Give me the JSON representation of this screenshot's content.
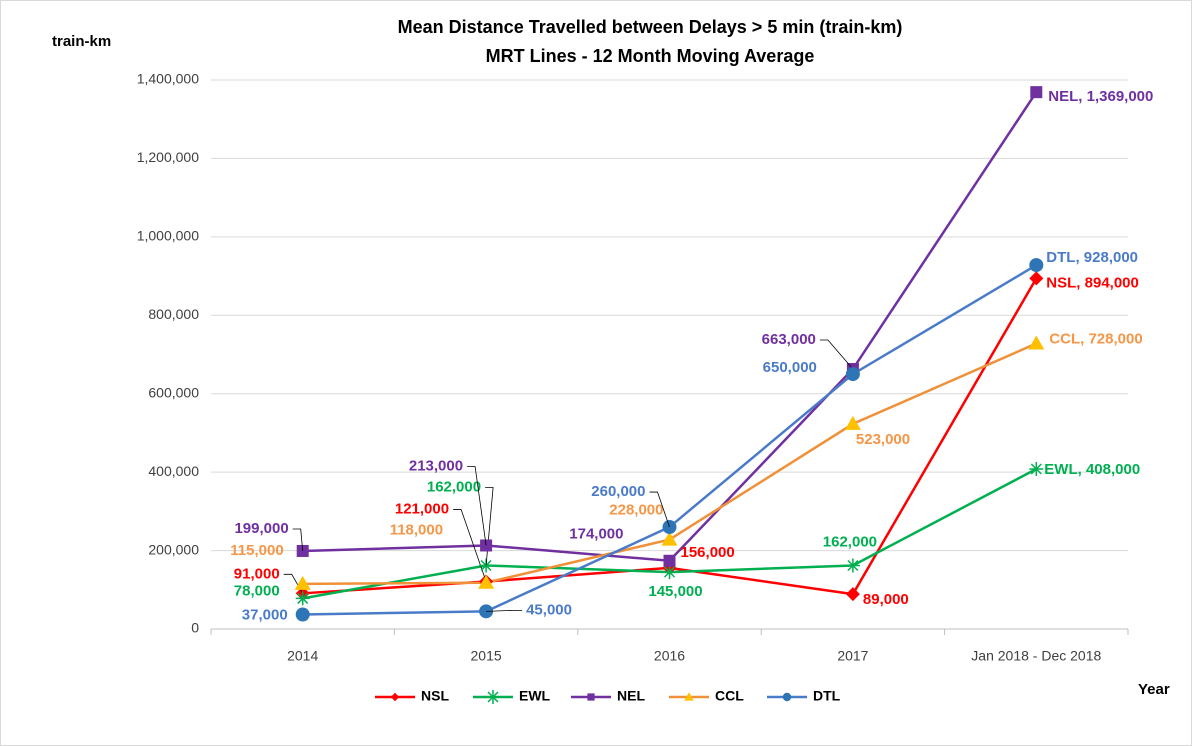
{
  "chart_data": {
    "type": "line",
    "title": [
      "Mean Distance Travelled between Delays > 5 min (train-km)",
      "MRT Lines - 12 Month Moving Average"
    ],
    "y_label": "train-km",
    "x_label": "Year",
    "categories": [
      "2014",
      "2015",
      "2016",
      "2017",
      "Jan 2018 - Dec 2018"
    ],
    "ylim": [
      0,
      1400000
    ],
    "yticks": [
      {
        "value": 0,
        "label": "0"
      },
      {
        "value": 200000,
        "label": "200,000"
      },
      {
        "value": 400000,
        "label": "400,000"
      },
      {
        "value": 600000,
        "label": "600,000"
      },
      {
        "value": 800000,
        "label": "800,000"
      },
      {
        "value": 1000000,
        "label": "1,000,000"
      },
      {
        "value": 1200000,
        "label": "1,200,000"
      },
      {
        "value": 1400000,
        "label": "1,400,000"
      }
    ],
    "grid": true,
    "legend": "bottom",
    "series": [
      {
        "name": "NSL",
        "color": "#ff0000",
        "marker_color": "#ff0000",
        "marker": "diamond",
        "values": [
          91000,
          121000,
          156000,
          89000,
          894000
        ],
        "value_labels": [
          "91,000",
          "121,000",
          "156,000",
          "89,000",
          "NSL, 894,000"
        ]
      },
      {
        "name": "EWL",
        "color": "#00b050",
        "marker_color": "#00b050",
        "marker": "asterisk",
        "values": [
          78000,
          162000,
          145000,
          162000,
          408000
        ],
        "value_labels": [
          "78,000",
          "162,000",
          "145,000",
          "162,000",
          "EWL, 408,000"
        ]
      },
      {
        "name": "NEL",
        "color": "#7030a0",
        "marker_color": "#7030a0",
        "marker": "square",
        "values": [
          199000,
          213000,
          174000,
          663000,
          1369000
        ],
        "value_labels": [
          "199,000",
          "213,000",
          "174,000",
          "663,000",
          "NEL, 1,369,000"
        ]
      },
      {
        "name": "CCL",
        "color": "#f0913a",
        "marker_color": "#ffc000",
        "marker": "triangle",
        "values": [
          115000,
          118000,
          228000,
          523000,
          728000
        ],
        "value_labels": [
          "115,000",
          "118,000",
          "228,000",
          "523,000",
          "CCL, 728,000"
        ]
      },
      {
        "name": "DTL",
        "color": "#4a7bc8",
        "marker_color": "#2e75b6",
        "marker": "circle",
        "values": [
          37000,
          45000,
          260000,
          650000,
          928000
        ],
        "value_labels": [
          "37,000",
          "45,000",
          "260,000",
          "650,000",
          "DTL, 928,000"
        ]
      }
    ]
  }
}
